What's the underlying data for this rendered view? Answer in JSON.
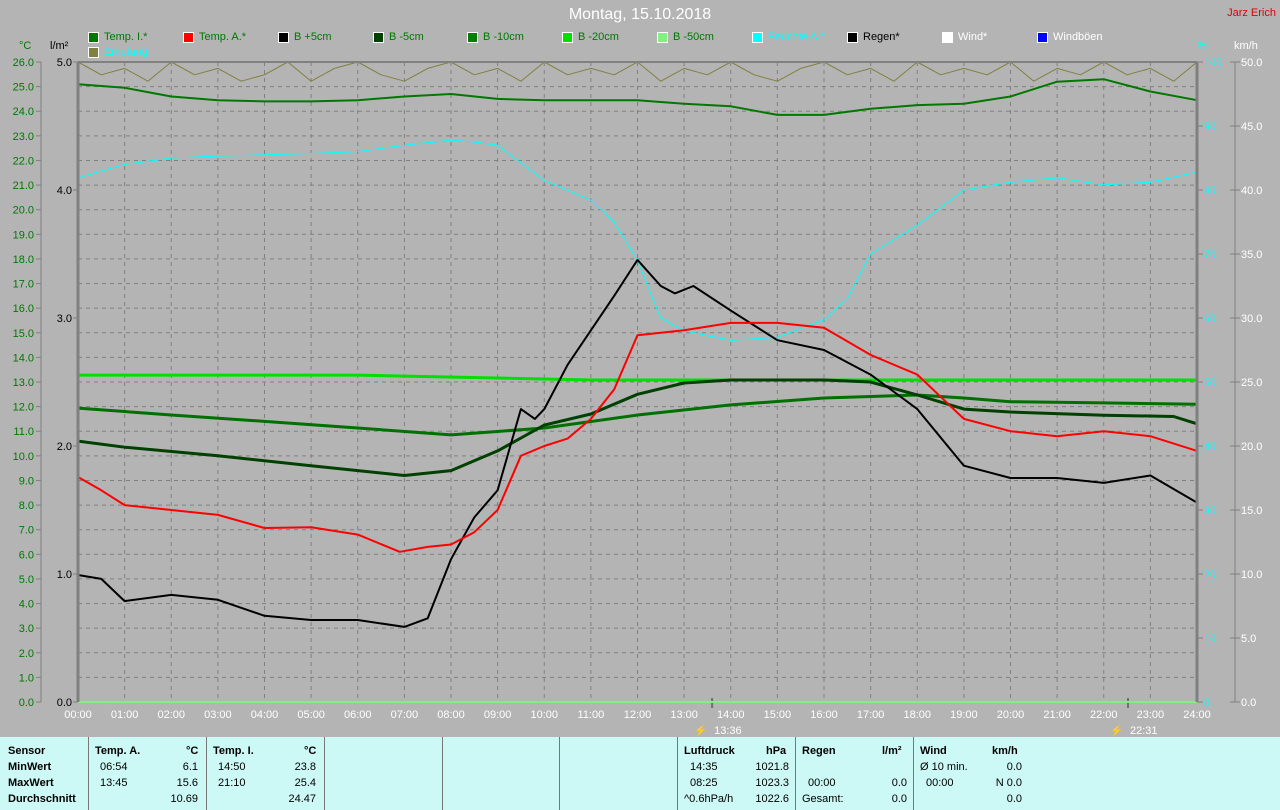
{
  "header": {
    "title": "Montag, 15.10.2018",
    "author": "Jarz Erich"
  },
  "legend": [
    {
      "label": "Temp. I.*",
      "color": "#007800",
      "text_color": "#007800"
    },
    {
      "label": "Temp. A.*",
      "color": "#ff0000",
      "text_color": "#007800"
    },
    {
      "label": "B +5cm",
      "color": "#000000",
      "text_color": "#007800"
    },
    {
      "label": "B -5cm",
      "color": "#004000",
      "text_color": "#007800"
    },
    {
      "label": "B -10cm",
      "color": "#008000",
      "text_color": "#007800"
    },
    {
      "label": "B -20cm",
      "color": "#00e000",
      "text_color": "#007800"
    },
    {
      "label": "B -50cm",
      "color": "#80f080",
      "text_color": "#007800"
    },
    {
      "label": "Feuchte A.*",
      "color": "#00ffff",
      "text_color": "#00ffff"
    },
    {
      "label": "Regen*",
      "color": "#000000",
      "text_color": "#000000"
    },
    {
      "label": "Wind*",
      "color": "#ffffff",
      "text_color": "#ffffff"
    },
    {
      "label": "Windböen",
      "color": "#0000ff",
      "text_color": "#ffffff"
    },
    {
      "label": "Empfang",
      "color": "#808040",
      "text_color": "#00ffff"
    }
  ],
  "chart_data": {
    "type": "line",
    "title": "Montag, 15.10.2018",
    "grid": true,
    "x_range": [
      0,
      24
    ],
    "x_ticks": [
      "00:00",
      "01:00",
      "02:00",
      "03:00",
      "04:00",
      "05:00",
      "06:00",
      "07:00",
      "08:00",
      "09:00",
      "10:00",
      "11:00",
      "12:00",
      "13:00",
      "14:00",
      "15:00",
      "16:00",
      "17:00",
      "18:00",
      "19:00",
      "20:00",
      "21:00",
      "22:00",
      "23:00",
      "24:00"
    ],
    "axes": {
      "temp": {
        "unit": "°C",
        "range": [
          0,
          26
        ],
        "step": 1,
        "color": "#007800"
      },
      "rain": {
        "unit": "l/m²",
        "range": [
          0,
          5
        ],
        "step": 1,
        "color": "#000000"
      },
      "hum": {
        "unit": "%",
        "range": [
          0,
          100
        ],
        "step": 10,
        "color": "#00ffff"
      },
      "wind": {
        "unit": "km/h",
        "range": [
          0,
          50
        ],
        "step": 5,
        "color": "#ffffff"
      }
    },
    "markers": [
      {
        "time": 13.6,
        "label": "13:36"
      },
      {
        "time": 22.52,
        "label": "22:31"
      }
    ],
    "series": [
      {
        "name": "Empfang",
        "axis": "hum",
        "color": "#808040",
        "width": 1,
        "x": [
          0,
          0.5,
          1,
          1.5,
          2,
          2.5,
          3,
          3.5,
          4,
          4.5,
          5,
          5.5,
          6,
          6.5,
          7,
          7.5,
          8,
          8.5,
          9,
          9.5,
          10,
          10.5,
          11,
          11.5,
          12,
          12.5,
          13,
          13.5,
          14,
          14.5,
          15,
          15.5,
          16,
          16.5,
          17,
          17.5,
          18,
          18.5,
          19,
          19.5,
          20,
          20.5,
          21,
          21.5,
          22,
          22.5,
          23,
          23.5,
          24
        ],
        "y": [
          100,
          98,
          99,
          97,
          100,
          98,
          99,
          97,
          98,
          100,
          97,
          99,
          100,
          98,
          97,
          99,
          100,
          98,
          99,
          97,
          100,
          98,
          99,
          98,
          100,
          97,
          99,
          98,
          100,
          98,
          97,
          99,
          100,
          98,
          99,
          97,
          100,
          98,
          99,
          98,
          100,
          97,
          99,
          98,
          100,
          98,
          99,
          97,
          100
        ]
      },
      {
        "name": "Feuchte A.*",
        "axis": "hum",
        "color": "#00ffff",
        "width": 1,
        "x": [
          0,
          1,
          2,
          3,
          4,
          5,
          6,
          7,
          8,
          8.5,
          9,
          10,
          11,
          11.5,
          12,
          12.5,
          13,
          14,
          15,
          16,
          16.5,
          17,
          18,
          19,
          20,
          21,
          22,
          23,
          24
        ],
        "y": [
          81.9,
          84,
          85,
          85.3,
          85.5,
          85.7,
          86,
          87,
          87.8,
          87.5,
          87,
          81.5,
          78.4,
          75,
          69,
          60,
          58,
          56.5,
          57,
          59.7,
          63,
          70,
          74.5,
          80,
          81.2,
          81.9,
          80.8,
          81.2,
          82.8
        ]
      },
      {
        "name": "B -50cm",
        "axis": "temp",
        "color": "#80f080",
        "width": 2,
        "x": [
          0,
          24
        ],
        "y": [
          0,
          0
        ]
      },
      {
        "name": "B -20cm",
        "axis": "temp",
        "color": "#00e000",
        "width": 3,
        "x": [
          0,
          6,
          11,
          24
        ],
        "y": [
          13.28,
          13.28,
          13.08,
          13.08
        ]
      },
      {
        "name": "B -10cm",
        "axis": "temp",
        "color": "#007000",
        "width": 3,
        "x": [
          0,
          2,
          4,
          6,
          8,
          10,
          12,
          14,
          16,
          18,
          19,
          20,
          22,
          24
        ],
        "y": [
          11.94,
          11.66,
          11.4,
          11.13,
          10.85,
          11.13,
          11.66,
          12.07,
          12.35,
          12.47,
          12.35,
          12.2,
          12.15,
          12.1
        ]
      },
      {
        "name": "B -5cm",
        "axis": "temp",
        "color": "#004000",
        "width": 3,
        "x": [
          0,
          1,
          3,
          5,
          7,
          8,
          9,
          10,
          11,
          12,
          13,
          14,
          16,
          17,
          18,
          19,
          20,
          22,
          23.5,
          24
        ],
        "y": [
          10.6,
          10.35,
          10.0,
          9.6,
          9.2,
          9.4,
          10.2,
          11.25,
          11.7,
          12.5,
          12.96,
          13.08,
          13.08,
          13.0,
          12.47,
          11.9,
          11.78,
          11.65,
          11.6,
          11.3
        ]
      },
      {
        "name": "B +5cm",
        "axis": "temp",
        "color": "#000000",
        "width": 2,
        "x": [
          0,
          0.5,
          1,
          2,
          3,
          4,
          5,
          6,
          7,
          7.5,
          8,
          8.5,
          9,
          9.5,
          9.8,
          10,
          10.5,
          11,
          11.5,
          12,
          12.5,
          12.8,
          13.2,
          14,
          15,
          16,
          17,
          18,
          19,
          20,
          21,
          22,
          23,
          24
        ],
        "y": [
          5.16,
          5.0,
          4.1,
          4.35,
          4.15,
          3.5,
          3.33,
          3.33,
          3.05,
          3.4,
          5.8,
          7.5,
          8.6,
          11.9,
          11.5,
          11.9,
          13.7,
          15.1,
          16.5,
          17.96,
          16.9,
          16.6,
          16.9,
          15.9,
          14.7,
          14.3,
          13.3,
          11.9,
          9.6,
          9.1,
          9.1,
          8.9,
          9.2,
          8.1
        ]
      },
      {
        "name": "Temp. A.*",
        "axis": "temp",
        "color": "#ff0000",
        "width": 2,
        "x": [
          0,
          0.5,
          1,
          2,
          3,
          4,
          5,
          6,
          6.9,
          7.5,
          8,
          8.5,
          9,
          9.5,
          10,
          10.5,
          11,
          11.5,
          12,
          12.5,
          13,
          14,
          15,
          16,
          17,
          18,
          19,
          20,
          21,
          22,
          23,
          24
        ],
        "y": [
          9.14,
          8.6,
          8.0,
          7.8,
          7.6,
          7.07,
          7.1,
          6.8,
          6.1,
          6.3,
          6.4,
          6.9,
          7.8,
          10.0,
          10.4,
          10.7,
          11.5,
          12.7,
          14.9,
          15.0,
          15.1,
          15.4,
          15.4,
          15.2,
          14.1,
          13.3,
          11.5,
          11.0,
          10.8,
          11.0,
          10.8,
          10.2
        ]
      },
      {
        "name": "Temp. I.*",
        "axis": "temp",
        "color": "#007800",
        "width": 2,
        "x": [
          0,
          1,
          2,
          3,
          4,
          5,
          6,
          7,
          8,
          9,
          10,
          11,
          12,
          13,
          14,
          15,
          16,
          17,
          18,
          19,
          20,
          21,
          22,
          23,
          24
        ],
        "y": [
          25.1,
          24.95,
          24.6,
          24.45,
          24.4,
          24.4,
          24.45,
          24.6,
          24.7,
          24.5,
          24.45,
          24.45,
          24.45,
          24.3,
          24.2,
          23.85,
          23.85,
          24.1,
          24.25,
          24.3,
          24.6,
          25.2,
          25.3,
          24.8,
          24.45
        ]
      }
    ]
  },
  "stats": {
    "sensor": {
      "h": "Sensor",
      "r1": "MinWert",
      "r2": "MaxWert",
      "r3": "Durchschnitt"
    },
    "temp_a": {
      "h": "Temp. A.",
      "u": "°C",
      "min_t": "06:54",
      "min_v": "6.1",
      "max_t": "13:45",
      "max_v": "15.6",
      "avg": "10.69"
    },
    "temp_i": {
      "h": "Temp. I.",
      "u": "°C",
      "min_t": "14:50",
      "min_v": "23.8",
      "max_t": "21:10",
      "max_v": "25.4",
      "avg": "24.47"
    },
    "pressure": {
      "h": "Luftdruck",
      "u": "hPa",
      "min_t": "14:35",
      "min_v": "1021.8",
      "max_t": "08:25",
      "max_v": "1023.3",
      "trend": "^0.6hPa/h",
      "cur": "1022.6"
    },
    "rain": {
      "h": "Regen",
      "u": "l/m²",
      "t": "00:00",
      "v": "0.0",
      "total_l": "Gesamt:",
      "total": "0.0"
    },
    "wind": {
      "h": "Wind",
      "u": "km/h",
      "avg_l": "Ø 10 min.",
      "avg": "0.0",
      "max_t": "00:00",
      "max_v": "N 0.0",
      "v3": "0.0"
    }
  }
}
